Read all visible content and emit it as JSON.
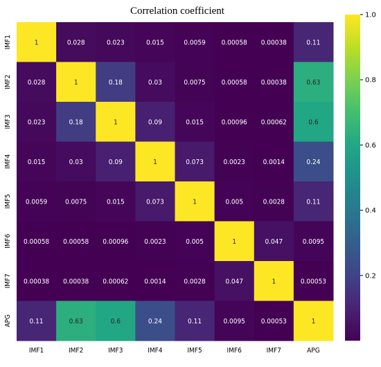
{
  "chart_data": {
    "type": "heatmap",
    "title": "Correlation coefficient",
    "xlabel": "",
    "ylabel": "",
    "labels": [
      "IMF1",
      "IMF2",
      "IMF3",
      "IMF4",
      "IMF5",
      "IMF6",
      "IMF7",
      "APG"
    ],
    "matrix": [
      [
        1,
        0.028,
        0.023,
        0.015,
        0.0059,
        0.00058,
        0.00038,
        0.11
      ],
      [
        0.028,
        1,
        0.18,
        0.03,
        0.0075,
        0.00058,
        0.00038,
        0.63
      ],
      [
        0.023,
        0.18,
        1,
        0.09,
        0.015,
        0.00096,
        0.00062,
        0.6
      ],
      [
        0.015,
        0.03,
        0.09,
        1,
        0.073,
        0.0023,
        0.0014,
        0.24
      ],
      [
        0.0059,
        0.0075,
        0.015,
        0.073,
        1,
        0.005,
        0.0028,
        0.11
      ],
      [
        0.00058,
        0.00058,
        0.00096,
        0.0023,
        0.005,
        1,
        0.047,
        0.0095
      ],
      [
        0.00038,
        0.00038,
        0.00062,
        0.0014,
        0.0028,
        0.047,
        1,
        0.00053
      ],
      [
        0.11,
        0.63,
        0.6,
        0.24,
        0.11,
        0.0095,
        0.00053,
        1
      ]
    ],
    "cell_labels": [
      [
        "1",
        "0.028",
        "0.023",
        "0.015",
        "0.0059",
        "0.00058",
        "0.00038",
        "0.11"
      ],
      [
        "0.028",
        "1",
        "0.18",
        "0.03",
        "0.0075",
        "0.00058",
        "0.00038",
        "0.63"
      ],
      [
        "0.023",
        "0.18",
        "1",
        "0.09",
        "0.015",
        "0.00096",
        "0.00062",
        "0.6"
      ],
      [
        "0.015",
        "0.03",
        "0.09",
        "1",
        "0.073",
        "0.0023",
        "0.0014",
        "0.24"
      ],
      [
        "0.0059",
        "0.0075",
        "0.015",
        "0.073",
        "1",
        "0.005",
        "0.0028",
        "0.11"
      ],
      [
        "0.00058",
        "0.00058",
        "0.00096",
        "0.0023",
        "0.005",
        "1",
        "0.047",
        "0.0095"
      ],
      [
        "0.00038",
        "0.00038",
        "0.00062",
        "0.0014",
        "0.0028",
        "0.047",
        "1",
        "0.00053"
      ],
      [
        "0.11",
        "0.63",
        "0.6",
        "0.24",
        "0.11",
        "0.0095",
        "0.00053",
        "1"
      ]
    ],
    "colormap": "viridis",
    "vmin": 0,
    "vmax": 1,
    "colorbar_ticks": [
      1.0,
      0.8,
      0.6,
      0.4,
      0.2
    ],
    "colorbar_tick_labels": [
      "1.0",
      "0.8",
      "0.6",
      "0.4",
      "0.2"
    ],
    "grid": false
  }
}
